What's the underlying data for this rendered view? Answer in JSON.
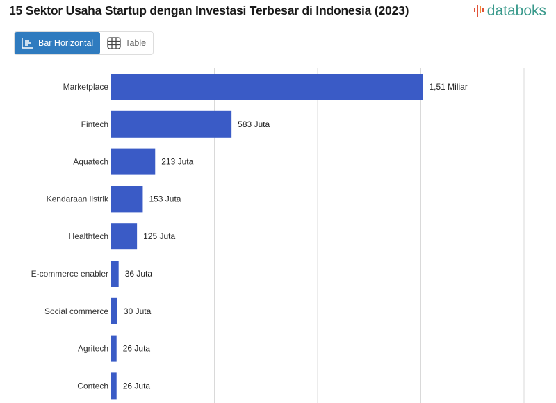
{
  "header": {
    "title": "15 Sektor Usaha Startup dengan Investasi Terbesar di Indonesia (2023)",
    "logo_text": "databoks"
  },
  "tabs": [
    {
      "label": "Bar Horizontal",
      "icon": "bar-chart-icon",
      "active": true
    },
    {
      "label": "Table",
      "icon": "table-icon",
      "active": false
    }
  ],
  "colors": {
    "bar": "#3a5bc6",
    "grid": "#d9d9d9",
    "accent": "#2f7bbf",
    "logo": "#3a9a8c"
  },
  "chart_data": {
    "type": "bar",
    "orientation": "horizontal",
    "title": "15 Sektor Usaha Startup dengan Investasi Terbesar di Indonesia (2023)",
    "unit": "USD juta",
    "xlim": [
      0,
      2000
    ],
    "grid_step": 500,
    "grid": true,
    "categories": [
      "Marketplace",
      "Fintech",
      "Aquatech",
      "Kendaraan listrik",
      "Healthtech",
      "E-commerce enabler",
      "Social commerce",
      "Agritech",
      "Contech"
    ],
    "values": [
      1510,
      583,
      213,
      153,
      125,
      36,
      30,
      26,
      26
    ],
    "labels": [
      "1,51 Miliar",
      "583 Juta",
      "213 Juta",
      "153 Juta",
      "125 Juta",
      "36 Juta",
      "30 Juta",
      "26 Juta",
      "26 Juta"
    ]
  }
}
